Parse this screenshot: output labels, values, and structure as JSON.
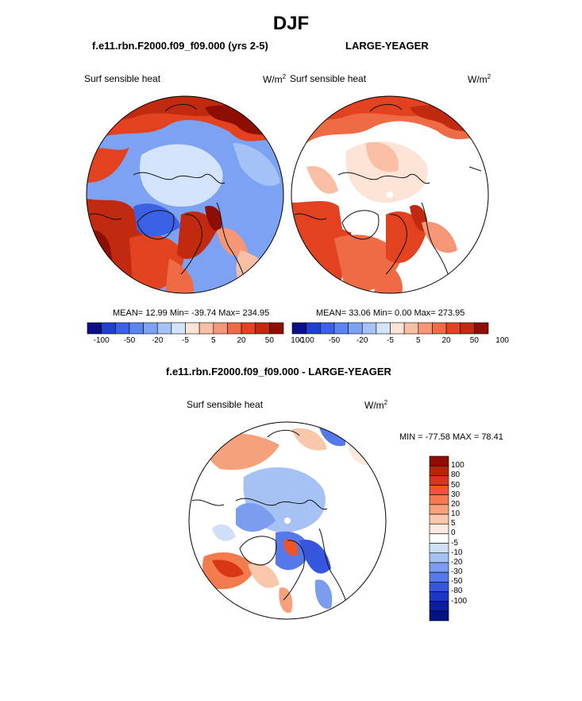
{
  "title": "DJF",
  "panel_left": {
    "case": "f.e11.rbn.F2000.f09_f09.000 (yrs 2-5)",
    "variable": "Surf sensible heat",
    "units_base": "W/m",
    "units_exp": "2",
    "stats": "MEAN=  12.99  Min= -39.74  Max= 234.95"
  },
  "panel_right": {
    "case": "LARGE-YEAGER",
    "variable": "Surf sensible heat",
    "units_base": "W/m",
    "units_exp": "2",
    "stats": "MEAN=  33.06  Min=   0.00  Max= 273.95"
  },
  "panel_diff": {
    "case": "f.e11.rbn.F2000.f09_f09.000 - LARGE-YEAGER",
    "variable": "Surf sensible heat",
    "units_base": "W/m",
    "units_exp": "2",
    "stats": "MIN = -77.58 MAX =  78.41"
  },
  "colorbar_top": {
    "colors": [
      "#0b0f8a",
      "#1f3fcf",
      "#3b62e6",
      "#5a84f0",
      "#7ea2f3",
      "#a5c2f7",
      "#d3e3fb",
      "#fde4d6",
      "#f9bfa5",
      "#f59777",
      "#ef6b46",
      "#e2421f",
      "#c22a10",
      "#8f0e04"
    ],
    "ticks": [
      "-100",
      "-50",
      "-20",
      "-5",
      "5",
      "20",
      "50",
      "100"
    ]
  },
  "colorbar_diff": {
    "colors": [
      "#8f0e04",
      "#b8230c",
      "#d83615",
      "#f0552a",
      "#f37b4e",
      "#f6a07c",
      "#f9c7ac",
      "#fde8dc",
      "#ffffff",
      "#cfdff8",
      "#a6c1f3",
      "#7a9df0",
      "#5578ea",
      "#3556dd",
      "#1c37c6",
      "#0b1ea3",
      "#051186"
    ],
    "ticks": [
      "100",
      "80",
      "50",
      "30",
      "20",
      "10",
      "5",
      "0",
      "-5",
      "-10",
      "-20",
      "-30",
      "-50",
      "-80",
      "-100"
    ]
  }
}
